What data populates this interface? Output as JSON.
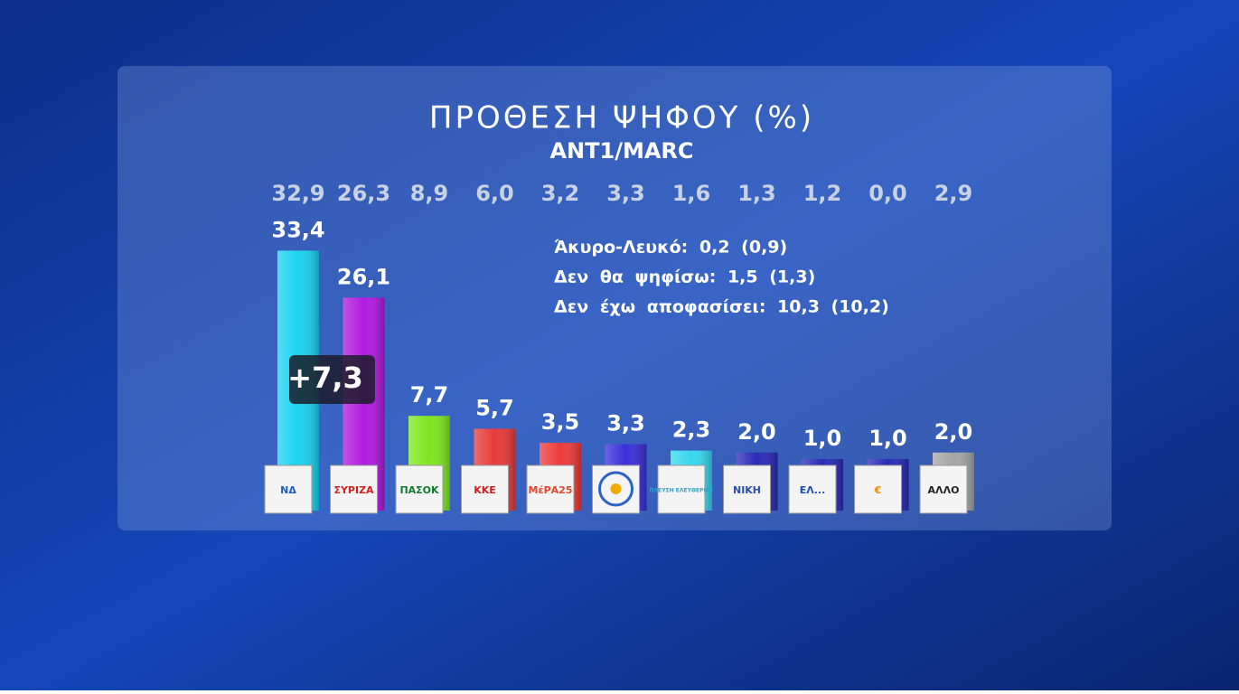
{
  "chart_data": {
    "type": "bar",
    "title": "ΠΡΟΘΕΣΗ ΨΗΦΟΥ (%)",
    "subtitle": "ANT1/MARC",
    "categories": [
      "ΝΔ",
      "ΣΥΡΙΖΑ",
      "ΠΑΣΟΚ",
      "ΚΚΕ",
      "ΜέΡΑ25",
      null,
      "ΠΛΕΥΣΗ ΕΛΕΥΘΕΡΙΑΣ",
      "ΝΙΚΗ",
      "ΕΛ...",
      "€",
      "ΑΛΛΟ"
    ],
    "values": [
      33.4,
      26.1,
      7.7,
      5.7,
      3.5,
      3.3,
      2.3,
      2.0,
      1.0,
      1.0,
      2.0
    ],
    "value_labels": [
      "33,4",
      "26,1",
      "7,7",
      "5,7",
      "3,5",
      "3,3",
      "2,3",
      "2,0",
      "1,0",
      "1,0",
      "2,0"
    ],
    "previous_values": [
      32.9,
      26.3,
      8.9,
      6.0,
      3.2,
      3.3,
      1.6,
      1.3,
      1.2,
      0.0,
      2.9
    ],
    "previous_value_labels": [
      "32,9",
      "26,3",
      "8,9",
      "6,0",
      "3,2",
      "3,3",
      "1,6",
      "1,3",
      "1,2",
      "0,0",
      "2,9"
    ],
    "colors": [
      "#19d3f0",
      "#b01adf",
      "#7ee620",
      "#e83a3a",
      "#ee3b3b",
      "#3a2fd8",
      "#36d7ee",
      "#2a2ab8",
      "#2a2ab8",
      "#2a2ab8",
      "#a5a5a5"
    ],
    "logo_colors": [
      "#1f5fb8",
      "#d42020",
      "#0e7a2c",
      "#d41b1b",
      "#e8452a",
      "#2b62c8",
      "#2aa6cf",
      "#2a4fb0",
      "#1c4bb6",
      "#f28a00",
      "#222222"
    ],
    "annotation": "+7,3",
    "notes": [
      "Άκυρο-Λευκό: 0,2 (0,9)",
      "Δεν θα ψηφίσω: 1,5 (1,3)",
      "Δεν έχω αποφασίσει: 10,3 (10,2)"
    ],
    "ylim": [
      0,
      35
    ]
  }
}
